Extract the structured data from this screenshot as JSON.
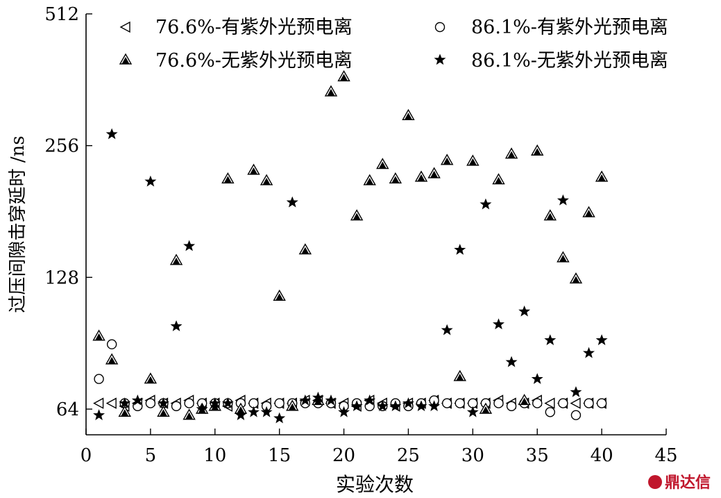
{
  "watermark": "鼎达信",
  "chart_data": {
    "type": "scatter",
    "title": "",
    "xlabel": "实验次数",
    "ylabel": "过压间隙击穿延时 /ns",
    "xlim": [
      0,
      45
    ],
    "ylim": [
      56,
      512
    ],
    "yscale": "log2",
    "xticks": [
      0,
      5,
      10,
      15,
      20,
      25,
      30,
      35,
      40,
      45
    ],
    "xtick_labels": [
      "0",
      "5",
      "10",
      "15",
      "20",
      "25",
      "30",
      "35",
      "40",
      "45"
    ],
    "yticks": [
      64,
      128,
      256,
      512
    ],
    "ytick_labels": [
      "64",
      "128",
      "256",
      "512"
    ],
    "grid": false,
    "legend_position": "top",
    "series": [
      {
        "name": "76.6%-有紫外光预电离",
        "marker": "triangle-left-open",
        "x": [
          1,
          2,
          3,
          4,
          5,
          6,
          7,
          8,
          9,
          10,
          11,
          12,
          13,
          14,
          15,
          16,
          17,
          18,
          19,
          20,
          21,
          22,
          23,
          24,
          25,
          26,
          27,
          28,
          29,
          30,
          31,
          32,
          33,
          34,
          35,
          36,
          37,
          38,
          39,
          40
        ],
        "y": [
          66,
          66,
          65,
          66,
          67,
          66,
          66,
          67,
          66,
          66,
          65,
          67,
          66,
          66,
          66,
          66,
          67,
          67,
          66,
          66,
          65,
          67,
          66,
          65,
          66,
          66,
          67,
          66,
          66,
          66,
          66,
          67,
          66,
          66,
          67,
          66,
          66,
          66,
          66,
          66
        ]
      },
      {
        "name": "86.1%-有紫外光预电离",
        "marker": "circle-open",
        "x": [
          1,
          2,
          3,
          4,
          5,
          6,
          7,
          8,
          9,
          10,
          11,
          12,
          13,
          14,
          15,
          16,
          17,
          18,
          19,
          20,
          21,
          22,
          23,
          24,
          25,
          26,
          27,
          28,
          29,
          30,
          31,
          32,
          33,
          34,
          35,
          36,
          37,
          38,
          39,
          40
        ],
        "y": [
          75,
          90,
          66,
          65,
          66,
          66,
          65,
          66,
          66,
          66,
          66,
          66,
          66,
          65,
          66,
          66,
          66,
          66,
          66,
          65,
          66,
          65,
          65,
          66,
          65,
          66,
          67,
          66,
          66,
          66,
          66,
          66,
          65,
          66,
          66,
          63,
          66,
          62,
          66,
          66
        ]
      },
      {
        "name": "76.6%-无紫外光预电离",
        "marker": "triangle-up-filled",
        "x": [
          1,
          2,
          3,
          5,
          6,
          7,
          8,
          9,
          10,
          11,
          12,
          13,
          14,
          15,
          16,
          17,
          18,
          19,
          20,
          21,
          22,
          23,
          24,
          25,
          26,
          27,
          28,
          29,
          30,
          31,
          32,
          33,
          34,
          35,
          36,
          37,
          38,
          39,
          40
        ],
        "y": [
          94,
          83,
          63,
          75,
          63,
          140,
          62,
          64,
          65,
          215,
          64,
          225,
          213,
          116,
          65,
          148,
          67,
          340,
          368,
          177,
          213,
          232,
          215,
          300,
          217,
          221,
          237,
          76,
          236,
          64,
          214,
          245,
          67,
          249,
          177,
          142,
          127,
          180,
          217
        ]
      },
      {
        "name": "86.1%-无紫外光预电离",
        "marker": "star-filled",
        "x": [
          1,
          2,
          3,
          4,
          5,
          6,
          7,
          8,
          9,
          10,
          11,
          12,
          13,
          14,
          15,
          16,
          17,
          18,
          19,
          20,
          21,
          22,
          23,
          24,
          25,
          26,
          27,
          28,
          29,
          30,
          31,
          32,
          33,
          34,
          35,
          36,
          37,
          38,
          39,
          40
        ],
        "y": [
          62,
          272,
          66,
          67,
          212,
          66,
          99,
          151,
          64,
          66,
          66,
          62,
          63,
          63,
          61,
          190,
          67,
          68,
          67,
          63,
          65,
          67,
          65,
          65,
          66,
          65,
          65,
          97,
          148,
          63,
          188,
          100,
          82,
          107,
          75,
          92,
          192,
          70,
          86,
          92
        ]
      }
    ]
  }
}
